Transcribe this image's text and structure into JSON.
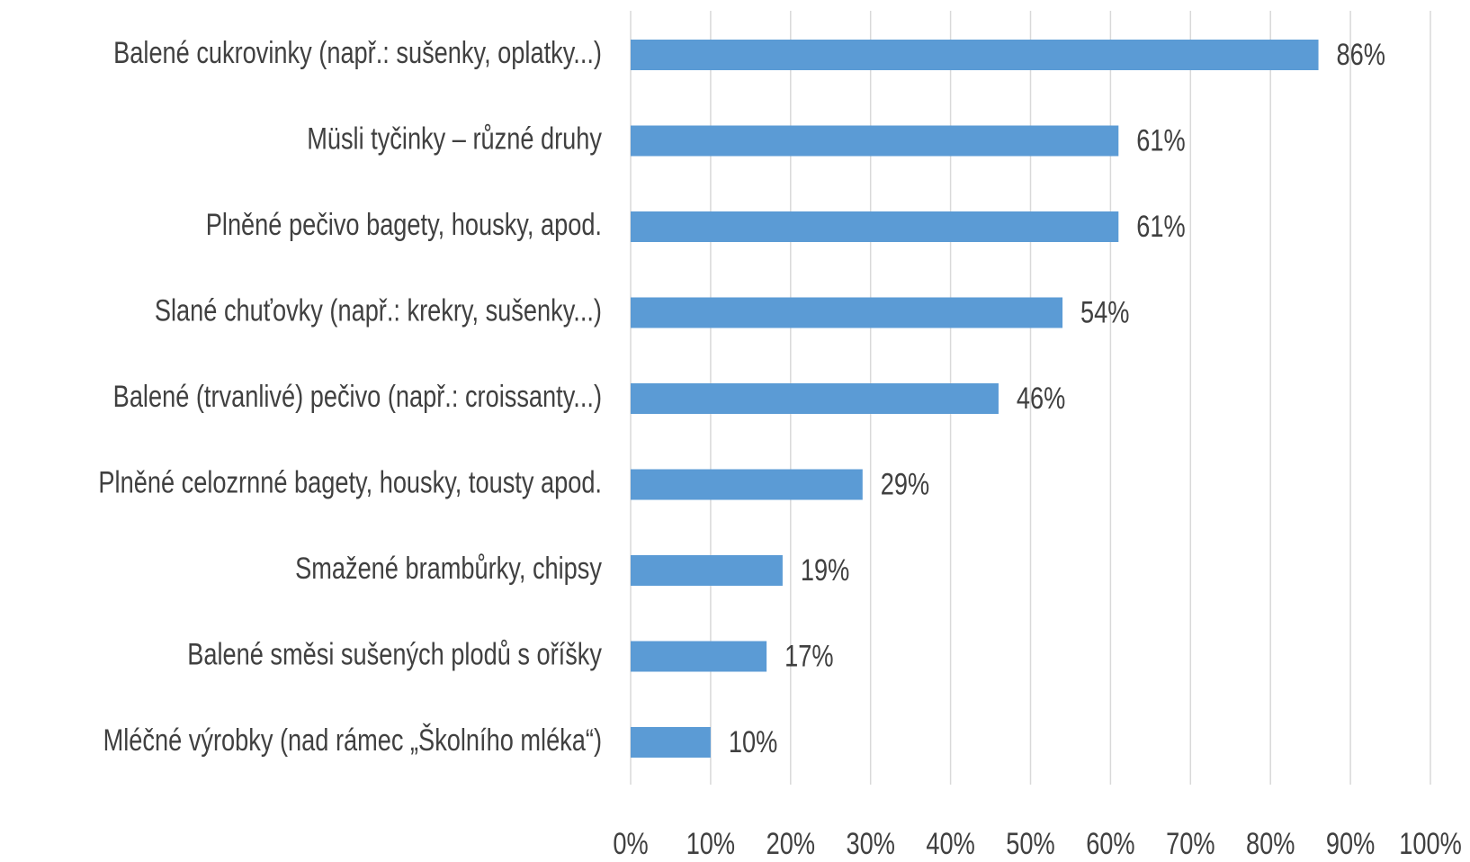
{
  "chart_data": {
    "type": "barh",
    "categories": [
      "Balené cukrovinky  (např.: sušenky, oplatky...)",
      "Müsli tyčinky – různé druhy",
      "Plněné pečivo bagety, housky, apod.",
      "Slané chuťovky  (např.: krekry, sušenky...)",
      "Balené (trvanlivé) pečivo (např.: croissanty...)",
      "Plněné celozrnné bagety, housky, tousty apod.",
      "Smažené brambůrky, chipsy",
      "Balené směsi sušených plodů s oříšky",
      "Mléčné výrobky  (nad rámec „Školního mléka“)"
    ],
    "values": [
      86,
      61,
      61,
      54,
      46,
      29,
      19,
      17,
      10
    ],
    "value_labels": [
      "86%",
      "61%",
      "61%",
      "54%",
      "46%",
      "29%",
      "19%",
      "17%",
      "10%"
    ],
    "color": "#5b9bd5",
    "xlim": [
      0,
      100
    ],
    "xticks": [
      {
        "value": 0,
        "label": "0%"
      },
      {
        "value": 10,
        "label": "10%"
      },
      {
        "value": 20,
        "label": "20%"
      },
      {
        "value": 30,
        "label": "30%"
      },
      {
        "value": 40,
        "label": "40%"
      },
      {
        "value": 50,
        "label": "50%"
      },
      {
        "value": 60,
        "label": "60%"
      },
      {
        "value": 70,
        "label": "70%"
      },
      {
        "value": 80,
        "label": "80%"
      },
      {
        "value": 90,
        "label": "90%"
      },
      {
        "value": 100,
        "label": "100%"
      }
    ],
    "grid": true
  }
}
